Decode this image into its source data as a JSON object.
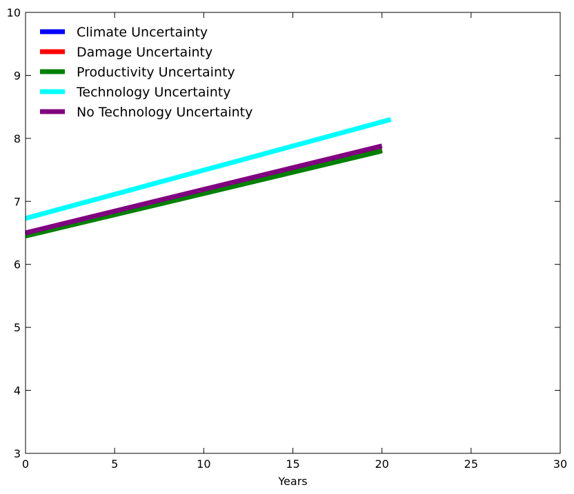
{
  "chart_data": {
    "type": "line",
    "title": "",
    "xlabel": "Years",
    "ylabel": "",
    "xlim": [
      0,
      30
    ],
    "ylim": [
      3,
      10
    ],
    "xticks": [
      "0",
      "5",
      "10",
      "15",
      "20",
      "25",
      "30"
    ],
    "yticks": [
      "3",
      "4",
      "5",
      "6",
      "7",
      "8",
      "9",
      "10"
    ],
    "grid": false,
    "legend_position": "top-left",
    "series": [
      {
        "name": "Climate Uncertainty",
        "color": "#0000ff",
        "x": [
          0,
          20
        ],
        "y": [
          6.47,
          7.82
        ]
      },
      {
        "name": "Damage Uncertainty",
        "color": "#ff0000",
        "x": [
          0,
          20
        ],
        "y": [
          6.47,
          7.82
        ]
      },
      {
        "name": "Productivity Uncertainty",
        "color": "#008000",
        "x": [
          0,
          20
        ],
        "y": [
          6.45,
          7.8
        ]
      },
      {
        "name": "Technology Uncertainty",
        "color": "#00ffff",
        "x": [
          0,
          20.5
        ],
        "y": [
          6.73,
          8.3
        ]
      },
      {
        "name": "No Technology Uncertainty",
        "color": "#800080",
        "x": [
          0,
          20
        ],
        "y": [
          6.5,
          7.88
        ]
      }
    ]
  }
}
